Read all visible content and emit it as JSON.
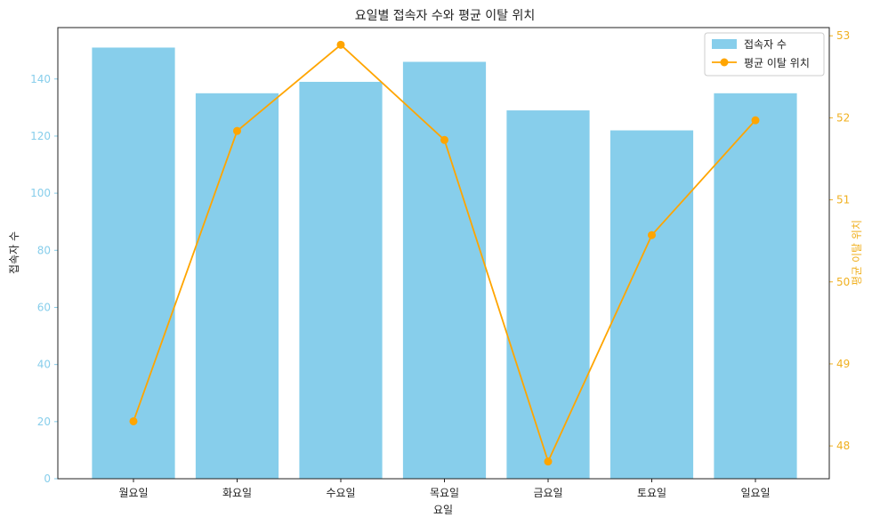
{
  "chart_data": {
    "type": "bar",
    "title": "요일별 접속자 수와 평균 이탈 위치",
    "xlabel": "요일",
    "ylabel": "접속자 수",
    "y2label": "평균 이탈 위치",
    "categories": [
      "월요일",
      "화요일",
      "수요일",
      "목요일",
      "금요일",
      "토요일",
      "일요일"
    ],
    "ylim": [
      0,
      158
    ],
    "y2lim": [
      47.6,
      53.1
    ],
    "yticks": [
      0,
      20,
      40,
      60,
      80,
      100,
      120,
      140
    ],
    "y2ticks": [
      48,
      49,
      50,
      51,
      52,
      53
    ],
    "grid": false,
    "legend_position": "top-right",
    "series": [
      {
        "name": "접속자 수",
        "type": "bar",
        "axis": "left",
        "color": "#87ceeb",
        "values": [
          151,
          135,
          139,
          146,
          129,
          122,
          135
        ]
      },
      {
        "name": "평균 이탈 위치",
        "type": "line",
        "axis": "right",
        "color": "#ffa500",
        "marker": "circle",
        "values": [
          48.3,
          51.84,
          52.89,
          51.73,
          47.81,
          50.57,
          51.97
        ]
      }
    ],
    "colors": {
      "left_axis": "#87ceeb",
      "right_axis": "#f0b020",
      "text": "#222222"
    }
  }
}
